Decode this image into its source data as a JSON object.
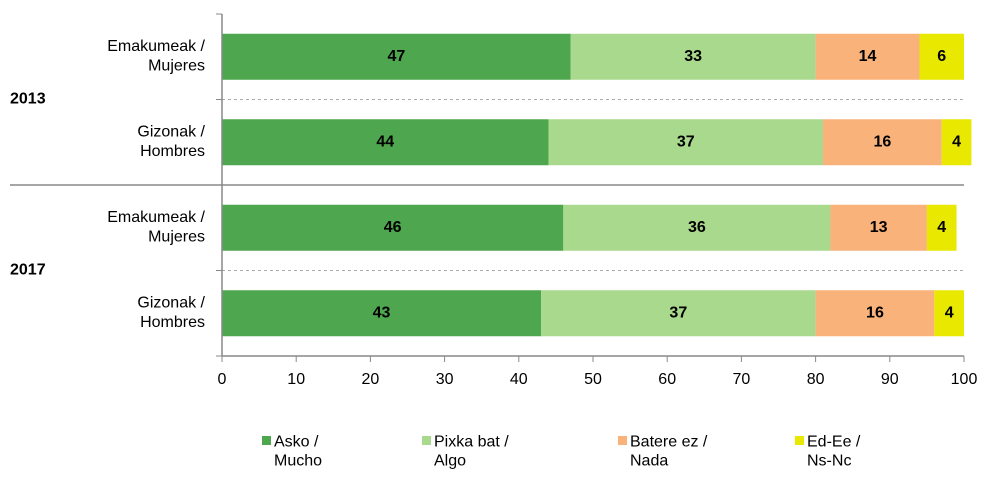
{
  "chart_data": {
    "type": "stacked-barh",
    "categories": [
      "Emakumeak / Mujeres",
      "Gizonak / Hombres",
      "Emakumeak / Mujeres",
      "Gizonak / Hombres"
    ],
    "groups": [
      "2013",
      "2017"
    ],
    "series": [
      {
        "name": "Asko / Mucho",
        "color": "#4ea64e",
        "values": [
          47,
          44,
          46,
          43
        ]
      },
      {
        "name": "Pixka bat / Algo",
        "color": "#a9d98c",
        "values": [
          33,
          37,
          36,
          37
        ]
      },
      {
        "name": "Batere ez / Nada",
        "color": "#f9b27a",
        "values": [
          14,
          16,
          13,
          16
        ]
      },
      {
        "name": "Ed-Ee / Ns-Nc",
        "color": "#e8e800",
        "values": [
          6,
          4,
          4,
          4
        ]
      }
    ],
    "xlim": [
      0,
      100
    ],
    "xticks": [
      0,
      10,
      20,
      30,
      40,
      50,
      60,
      70,
      80,
      90,
      100
    ],
    "legend": "bottom"
  }
}
